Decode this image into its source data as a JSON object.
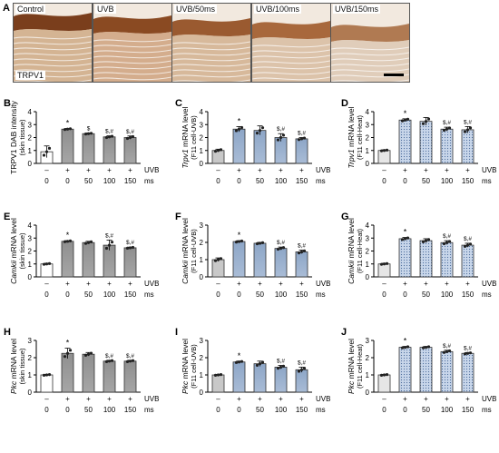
{
  "micrographs": {
    "letter": "A",
    "marker": "TRPV1",
    "panels": [
      {
        "label": "Control",
        "tone": "#c9a27a",
        "epi": "#7a3e1c"
      },
      {
        "label": "UVB",
        "tone": "#c99872",
        "epi": "#8a4a22"
      },
      {
        "label": "UVB/50ms",
        "tone": "#cda884",
        "epi": "#9a5a30"
      },
      {
        "label": "UVB/100ms",
        "tone": "#d4b698",
        "epi": "#a8683c"
      },
      {
        "label": "UVB/150ms",
        "tone": "#d9c3ad",
        "epi": "#b07a52"
      }
    ]
  },
  "legend": {
    "uvb": "UVB",
    "ms": "ms"
  },
  "chart_data": [
    {
      "letter": "B",
      "type": "bar",
      "ylabel": "TRPV1 DAB intensity",
      "ylabel_italic": "",
      "ylabel_rest": "",
      "sublabel": "(skin tissue)",
      "ylim": [
        0,
        4
      ],
      "yticks": [
        "0",
        "1",
        "2",
        "3",
        "4"
      ],
      "fill": "white-gray",
      "uvb": [
        "–",
        "+",
        "+",
        "+",
        "+"
      ],
      "ms": [
        "0",
        "0",
        "50",
        "100",
        "150"
      ],
      "values": [
        0.9,
        2.65,
        2.3,
        2.05,
        2.0
      ],
      "err": [
        0.45,
        0.05,
        0.05,
        0.08,
        0.12
      ],
      "marks": [
        "",
        "*",
        "$",
        "$,#",
        "$,#"
      ]
    },
    {
      "letter": "C",
      "type": "bar",
      "ylabel": "",
      "ylabel_italic": "Trpv1",
      "ylabel_rest": " mRNA level",
      "sublabel": "(F11 cell-UVB)",
      "ylim": [
        0,
        4
      ],
      "yticks": [
        "0",
        "1",
        "2",
        "3",
        "4"
      ],
      "fill": "light-blue",
      "uvb": [
        "–",
        "+",
        "+",
        "+",
        "+"
      ],
      "ms": [
        "0",
        "0",
        "50",
        "100",
        "150"
      ],
      "values": [
        1.0,
        2.65,
        2.55,
        2.0,
        1.9
      ],
      "err": [
        0.1,
        0.2,
        0.35,
        0.3,
        0.1
      ],
      "marks": [
        "",
        "*",
        "",
        "$,#",
        "$,#"
      ]
    },
    {
      "letter": "D",
      "type": "bar",
      "ylabel": "",
      "ylabel_italic": "Trpv1",
      "ylabel_rest": " mRNA level",
      "sublabel": "(F11 cell-Heat)",
      "ylim": [
        0,
        4
      ],
      "yticks": [
        "0",
        "1",
        "2",
        "3",
        "4"
      ],
      "fill": "dotted-blue",
      "uvb": [
        "–",
        "+",
        "+",
        "+",
        "+"
      ],
      "ms": [
        "0",
        "0",
        "50",
        "100",
        "150"
      ],
      "values": [
        1.0,
        3.35,
        3.25,
        2.65,
        2.6
      ],
      "err": [
        0.05,
        0.1,
        0.3,
        0.15,
        0.25
      ],
      "marks": [
        "",
        "*",
        "",
        "$,#",
        "$,#"
      ]
    },
    {
      "letter": "E",
      "type": "bar",
      "ylabel": "",
      "ylabel_italic": "Camkii",
      "ylabel_rest": " mRNA level",
      "sublabel": "(skin tissue)",
      "ylim": [
        0,
        4
      ],
      "yticks": [
        "0",
        "1",
        "2",
        "3",
        "4"
      ],
      "fill": "white-gray",
      "uvb": [
        "–",
        "+",
        "+",
        "+",
        "+"
      ],
      "ms": [
        "0",
        "0",
        "50",
        "100",
        "150"
      ],
      "values": [
        1.0,
        2.75,
        2.65,
        2.45,
        2.25
      ],
      "err": [
        0.05,
        0.05,
        0.1,
        0.4,
        0.05
      ],
      "marks": [
        "",
        "*",
        "",
        "$,#",
        "$,#"
      ]
    },
    {
      "letter": "F",
      "type": "bar",
      "ylabel": "",
      "ylabel_italic": "Camkii",
      "ylabel_rest": " mRNA level",
      "sublabel": "(F11 cell-UVB)",
      "ylim": [
        0,
        3
      ],
      "yticks": [
        "0",
        "1",
        "2",
        "3"
      ],
      "fill": "light-blue",
      "uvb": [
        "–",
        "+",
        "+",
        "+",
        "+"
      ],
      "ms": [
        "0",
        "0",
        "50",
        "100",
        "150"
      ],
      "values": [
        1.0,
        2.05,
        1.95,
        1.65,
        1.45
      ],
      "err": [
        0.1,
        0.05,
        0.05,
        0.08,
        0.1
      ],
      "marks": [
        "",
        "*",
        "",
        "$,#",
        "$,#"
      ]
    },
    {
      "letter": "G",
      "type": "bar",
      "ylabel": "",
      "ylabel_italic": "Camkii",
      "ylabel_rest": " mRNA level",
      "sublabel": "(F11 cell-Heat)",
      "ylim": [
        0,
        4
      ],
      "yticks": [
        "0",
        "1",
        "2",
        "3",
        "4"
      ],
      "fill": "dotted-blue",
      "uvb": [
        "–",
        "+",
        "+",
        "+",
        "+"
      ],
      "ms": [
        "0",
        "0",
        "50",
        "100",
        "150"
      ],
      "values": [
        1.0,
        2.95,
        2.8,
        2.65,
        2.45
      ],
      "err": [
        0.05,
        0.1,
        0.15,
        0.15,
        0.15
      ],
      "marks": [
        "",
        "*",
        "",
        "$,#",
        "$,#"
      ]
    },
    {
      "letter": "H",
      "type": "bar",
      "ylabel": "",
      "ylabel_italic": "Pkc",
      "ylabel_rest": " mRNA level",
      "sublabel": "(skin tissue)",
      "ylim": [
        0,
        3
      ],
      "yticks": [
        "0",
        "1",
        "2",
        "3"
      ],
      "fill": "white-gray",
      "uvb": [
        "–",
        "+",
        "+",
        "+",
        "+"
      ],
      "ms": [
        "0",
        "0",
        "50",
        "100",
        "150"
      ],
      "values": [
        1.0,
        2.25,
        2.2,
        1.8,
        1.8
      ],
      "err": [
        0.03,
        0.3,
        0.1,
        0.05,
        0.05
      ],
      "marks": [
        "",
        "*",
        "",
        "$,#",
        "$,#"
      ]
    },
    {
      "letter": "I",
      "type": "bar",
      "ylabel": "",
      "ylabel_italic": "Pkc",
      "ylabel_rest": " mRNA level",
      "sublabel": "(F11 cell-UVB)",
      "ylim": [
        0,
        3
      ],
      "yticks": [
        "0",
        "1",
        "2",
        "3"
      ],
      "fill": "light-blue",
      "uvb": [
        "–",
        "+",
        "+",
        "+",
        "+"
      ],
      "ms": [
        "0",
        "0",
        "50",
        "100",
        "150"
      ],
      "values": [
        1.0,
        1.75,
        1.65,
        1.45,
        1.3
      ],
      "err": [
        0.03,
        0.05,
        0.15,
        0.1,
        0.15
      ],
      "marks": [
        "",
        "*",
        "",
        "$,#",
        "$,#"
      ]
    },
    {
      "letter": "J",
      "type": "bar",
      "ylabel": "",
      "ylabel_italic": "Pkc",
      "ylabel_rest": " mRNA level",
      "sublabel": "(F11 cell-Heat)",
      "ylim": [
        0,
        3
      ],
      "yticks": [
        "0",
        "1",
        "2",
        "3"
      ],
      "fill": "dotted-blue",
      "uvb": [
        "–",
        "+",
        "+",
        "+",
        "+"
      ],
      "ms": [
        "0",
        "0",
        "50",
        "100",
        "150"
      ],
      "values": [
        1.0,
        2.6,
        2.6,
        2.35,
        2.25
      ],
      "err": [
        0.03,
        0.05,
        0.05,
        0.08,
        0.05
      ],
      "marks": [
        "",
        "*",
        "",
        "$,#",
        "$,#"
      ]
    }
  ]
}
